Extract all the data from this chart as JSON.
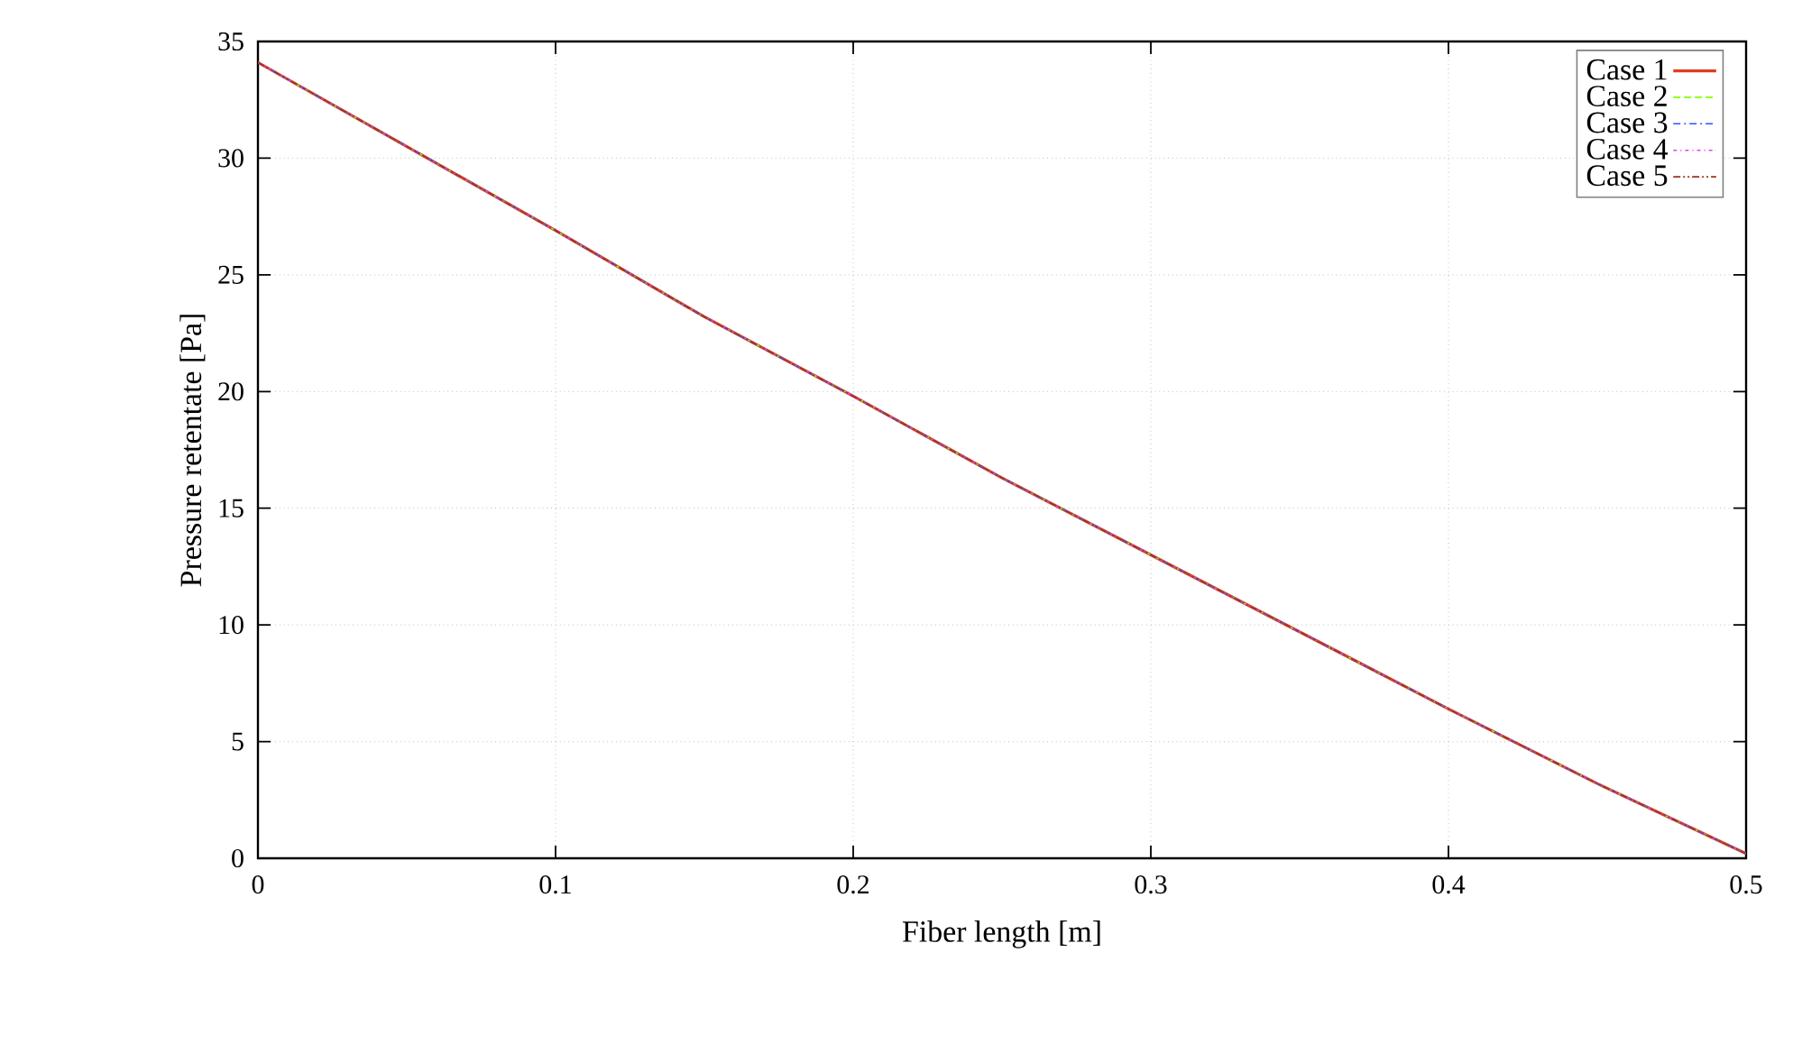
{
  "chart_data": {
    "type": "line",
    "xlabel": "Fiber length [m]",
    "ylabel": "Pressure retentate [Pa]",
    "xlim": [
      0,
      0.5
    ],
    "ylim": [
      0,
      35
    ],
    "xticks": [
      0,
      0.1,
      0.2,
      0.3,
      0.4,
      0.5
    ],
    "yticks": [
      0,
      5,
      10,
      15,
      20,
      25,
      30,
      35
    ],
    "grid": true,
    "legend": "top right",
    "x": [
      0,
      0.05,
      0.1,
      0.15,
      0.2,
      0.25,
      0.3,
      0.35,
      0.4,
      0.45,
      0.5
    ],
    "series": [
      {
        "name": "Case 1",
        "color": "#e03c1f",
        "line_style": "solid",
        "values": [
          34.1,
          30.5,
          26.9,
          23.2,
          19.8,
          16.3,
          13.0,
          9.7,
          6.4,
          3.2,
          0.2
        ]
      },
      {
        "name": "Case 2",
        "color": "#80ff00",
        "line_style": "dashed",
        "values": [
          34.1,
          30.5,
          26.9,
          23.2,
          19.8,
          16.3,
          13.0,
          9.7,
          6.4,
          3.2,
          0.2
        ]
      },
      {
        "name": "Case 3",
        "color": "#3050ff",
        "line_style": "dashdot",
        "values": [
          34.1,
          30.5,
          26.9,
          23.2,
          19.8,
          16.3,
          13.0,
          9.7,
          6.4,
          3.2,
          0.2
        ]
      },
      {
        "name": "Case 4",
        "color": "#e040f0",
        "line_style": "dotted",
        "values": [
          34.1,
          30.5,
          26.9,
          23.2,
          19.8,
          16.3,
          13.0,
          9.7,
          6.4,
          3.2,
          0.2
        ]
      },
      {
        "name": "Case 5",
        "color": "#a03020",
        "line_style": "dashdotdot",
        "values": [
          34.1,
          30.5,
          26.9,
          23.2,
          19.8,
          16.3,
          13.0,
          9.7,
          6.4,
          3.2,
          0.2
        ]
      }
    ]
  }
}
